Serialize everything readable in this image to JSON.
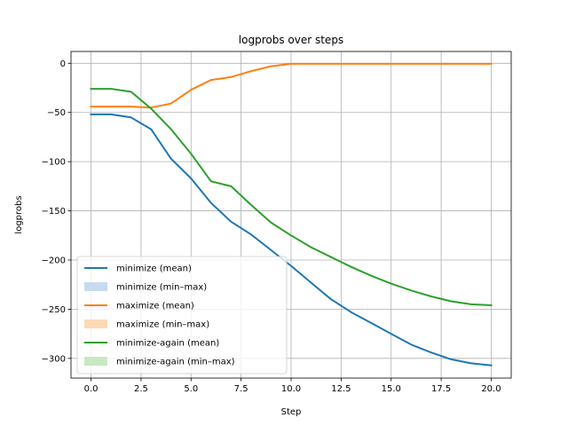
{
  "chart_data": {
    "type": "line",
    "title": "logprobs over steps",
    "xlabel": "Step",
    "ylabel": "logprobs",
    "xlim": [
      -1,
      21
    ],
    "ylim": [
      -320,
      12
    ],
    "xticks": [
      0.0,
      2.5,
      5.0,
      7.5,
      10.0,
      12.5,
      15.0,
      17.5,
      20.0
    ],
    "xtick_labels": [
      "0.0",
      "2.5",
      "5.0",
      "7.5",
      "10.0",
      "12.5",
      "15.0",
      "17.5",
      "20.0"
    ],
    "yticks": [
      0,
      -50,
      -100,
      -150,
      -200,
      -250,
      -300
    ],
    "ytick_labels": [
      "0",
      "−50",
      "−100",
      "−150",
      "−200",
      "−250",
      "−300"
    ],
    "grid": true,
    "legend_position": "lower-left",
    "x": [
      0,
      1,
      2,
      3,
      4,
      5,
      6,
      7,
      8,
      9,
      10,
      11,
      12,
      13,
      14,
      15,
      16,
      17,
      18,
      19,
      20
    ],
    "series": [
      {
        "name": "minimize (mean)",
        "band_name": "minimize (min–max)",
        "color": "#1f77b4",
        "band_color": "#c6dbef",
        "values": [
          -52,
          -52,
          -55,
          -67,
          -97,
          -117,
          -142,
          -161,
          -174,
          -190,
          -206,
          -223,
          -240,
          -253,
          -264,
          -275,
          -286,
          -294,
          -301,
          -305,
          -307
        ]
      },
      {
        "name": "maximize (mean)",
        "band_name": "maximize (min–max)",
        "color": "#ff7f0e",
        "band_color": "#fdd9b5",
        "values": [
          -44,
          -44,
          -44,
          -45,
          -41,
          -27,
          -17,
          -14,
          -8,
          -3,
          -0.5,
          -0.5,
          -0.5,
          -0.5,
          -0.5,
          -0.5,
          -0.5,
          -0.5,
          -0.5,
          -0.5,
          -0.5
        ]
      },
      {
        "name": "minimize-again (mean)",
        "band_name": "minimize-again (min–max)",
        "color": "#2ca02c",
        "band_color": "#c7e9c0",
        "values": [
          -26,
          -26,
          -29,
          -46,
          -67,
          -92,
          -120,
          -125,
          -144,
          -162,
          -175,
          -187,
          -197,
          -207,
          -216,
          -224,
          -231,
          -237,
          -242,
          -245,
          -246
        ]
      }
    ]
  }
}
